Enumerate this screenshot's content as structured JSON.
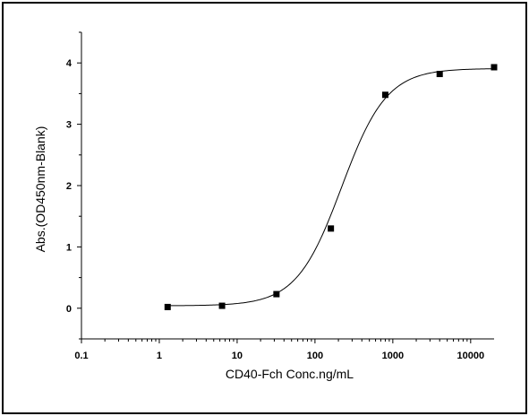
{
  "chart_data": {
    "type": "scatter",
    "title": "",
    "xlabel": "CD40-Fch Conc.ng/mL",
    "ylabel": "Abs.(OD450nm-Blank)",
    "x_scale": "log",
    "xlim": [
      0.1,
      20000
    ],
    "ylim": [
      -0.5,
      4.5
    ],
    "x_ticks": [
      0.1,
      1,
      10,
      100,
      1000,
      10000
    ],
    "x_tick_labels": [
      "0.1",
      "1",
      "10",
      "100",
      "1000",
      "10000"
    ],
    "y_ticks": [
      0,
      1,
      2,
      3,
      4
    ],
    "y_tick_labels": [
      "0",
      "1",
      "2",
      "3",
      "4"
    ],
    "grid": false,
    "legend": "none",
    "series": [
      {
        "marker": "square",
        "x": [
          1.28,
          6.4,
          32,
          160,
          800,
          4000,
          20000
        ],
        "y": [
          0.02,
          0.04,
          0.23,
          1.3,
          3.48,
          3.82,
          3.93
        ]
      }
    ],
    "fit_curve": {
      "model": "4PL",
      "bottom": 0.04,
      "top": 3.91,
      "ec50": 220,
      "hill": 1.5
    },
    "colors": {
      "line": "#000000",
      "marker": "#000000"
    }
  }
}
